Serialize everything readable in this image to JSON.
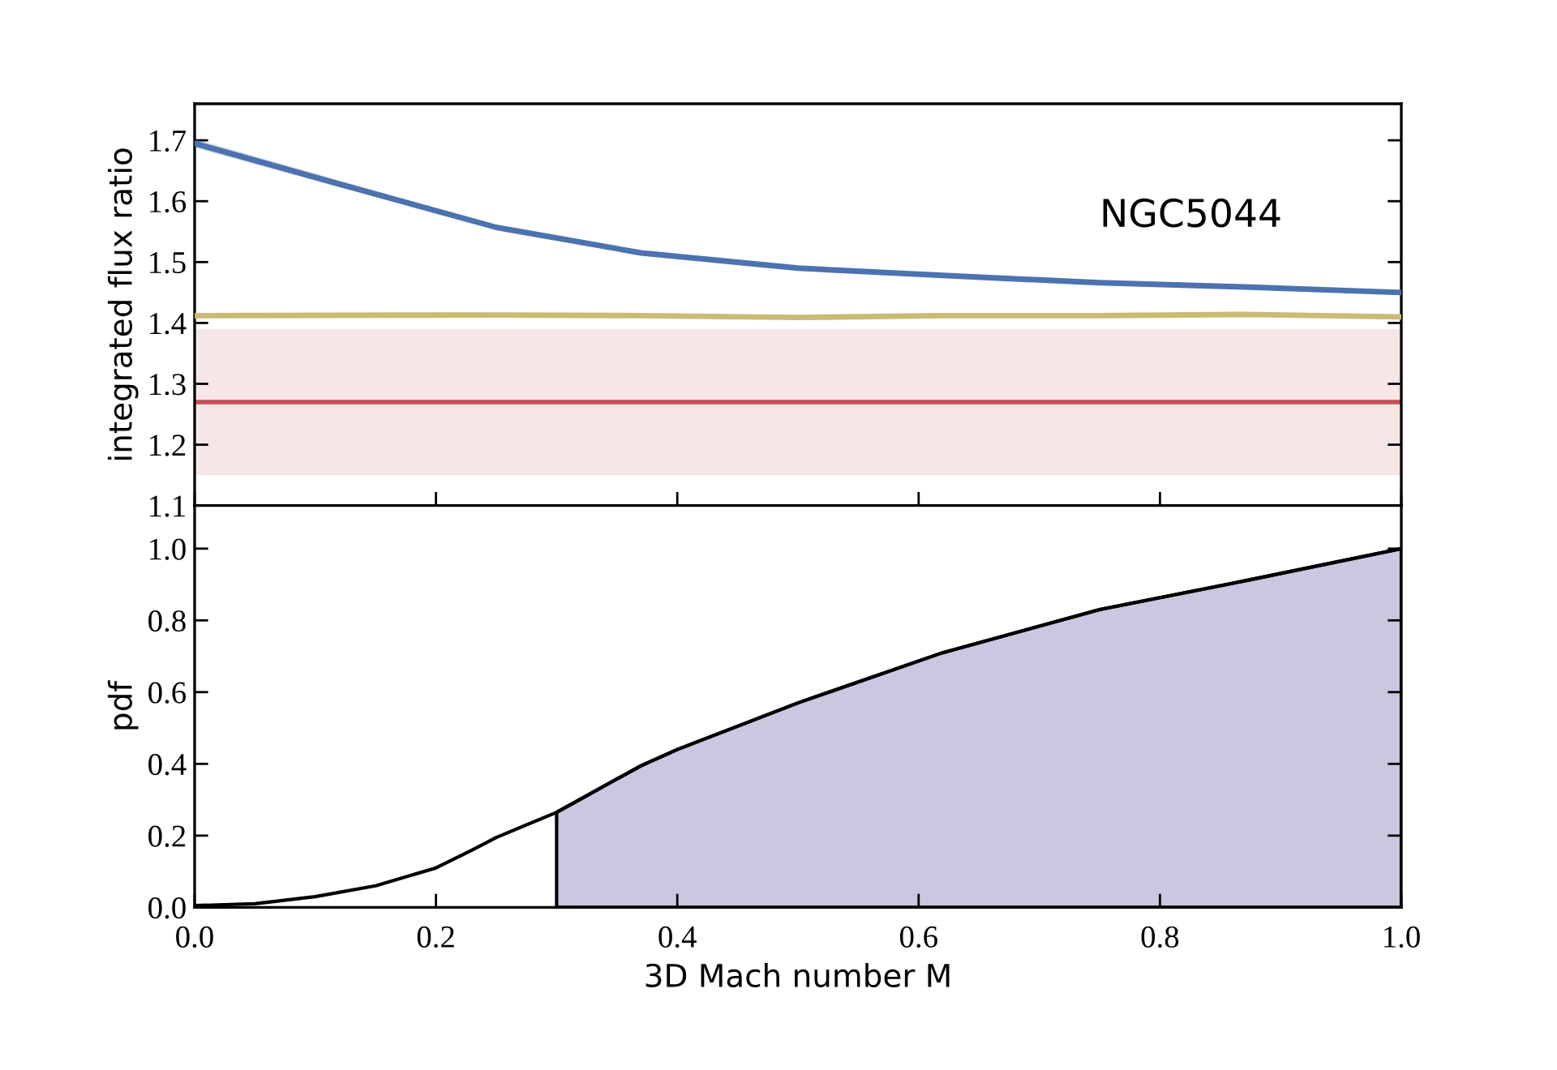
{
  "chart_data": [
    {
      "type": "line",
      "ylabel": "integrated flux ratio",
      "xlim": [
        0,
        1
      ],
      "xticks": [
        {
          "value": 0,
          "label": null
        },
        {
          "value": 0.2,
          "label": null
        },
        {
          "value": 0.4,
          "label": null
        },
        {
          "value": 0.6,
          "label": null
        },
        {
          "value": 0.8,
          "label": null
        },
        {
          "value": 1.0,
          "label": null
        }
      ],
      "ylim": [
        1.1,
        1.76
      ],
      "yticks": [
        1.1,
        1.2,
        1.3,
        1.4,
        1.5,
        1.6,
        1.7
      ],
      "tick_labels": "y",
      "grid": false,
      "annotations": [
        "NGC5044"
      ],
      "series": [
        {
          "color": "#4c72b0",
          "x": [
            0,
            0.12,
            0.25,
            0.37,
            0.5,
            0.62,
            0.75,
            0.87,
            1.0
          ],
          "values": [
            1.695,
            1.628,
            1.557,
            1.515,
            1.49,
            1.478,
            1.466,
            1.459,
            1.45
          ],
          "lower": [
            1.688,
            1.623,
            1.555,
            1.514,
            1.489,
            1.477,
            1.465,
            1.458,
            1.449
          ],
          "upper": [
            1.702,
            1.634,
            1.56,
            1.517,
            1.491,
            1.479,
            1.467,
            1.46,
            1.451
          ]
        },
        {
          "color": "#ccb974",
          "x": [
            0,
            0.25,
            0.37,
            0.5,
            0.62,
            0.75,
            0.87,
            1.0
          ],
          "values": [
            1.412,
            1.413,
            1.412,
            1.409,
            1.412,
            1.412,
            1.414,
            1.41
          ]
        }
      ],
      "ref_lines": [
        {
          "axis": "y",
          "value": 1.27,
          "color": "#c44e52"
        }
      ],
      "bands": [
        {
          "axis": "y",
          "from": 1.15,
          "to": 1.39,
          "color": "#f7e6e6"
        }
      ]
    },
    {
      "type": "line",
      "xlabel": "3D Mach number M",
      "ylabel": "pdf",
      "xlim": [
        0,
        1
      ],
      "xticks": [
        {
          "value": 0,
          "label": "0.0"
        },
        0.2,
        0.4,
        0.6,
        0.8,
        {
          "value": 1,
          "label": "1.0"
        }
      ],
      "ylim": [
        0,
        1.12
      ],
      "yticks": [
        {
          "value": 0,
          "label": "0.0"
        },
        0.2,
        0.4,
        0.6,
        0.8,
        {
          "value": 1,
          "label": "1.0"
        }
      ],
      "grid": false,
      "series": [
        {
          "type": "area",
          "color": "#cbc7e1",
          "x": [
            0.3,
            0.37,
            0.4,
            0.5,
            0.62,
            0.75,
            0.87,
            1.0
          ],
          "values": [
            0.265,
            0.395,
            0.44,
            0.57,
            0.71,
            0.83,
            0.91,
            1.0
          ]
        },
        {
          "type": "line",
          "color": "#000000",
          "x": [
            0,
            0.05,
            0.1,
            0.15,
            0.2,
            0.23,
            0.25,
            0.3,
            0.37,
            0.4,
            0.5,
            0.62,
            0.75,
            0.87,
            1.0
          ],
          "values": [
            0.005,
            0.01,
            0.03,
            0.06,
            0.11,
            0.16,
            0.195,
            0.265,
            0.395,
            0.44,
            0.57,
            0.71,
            0.83,
            0.91,
            1.0
          ]
        }
      ]
    }
  ]
}
